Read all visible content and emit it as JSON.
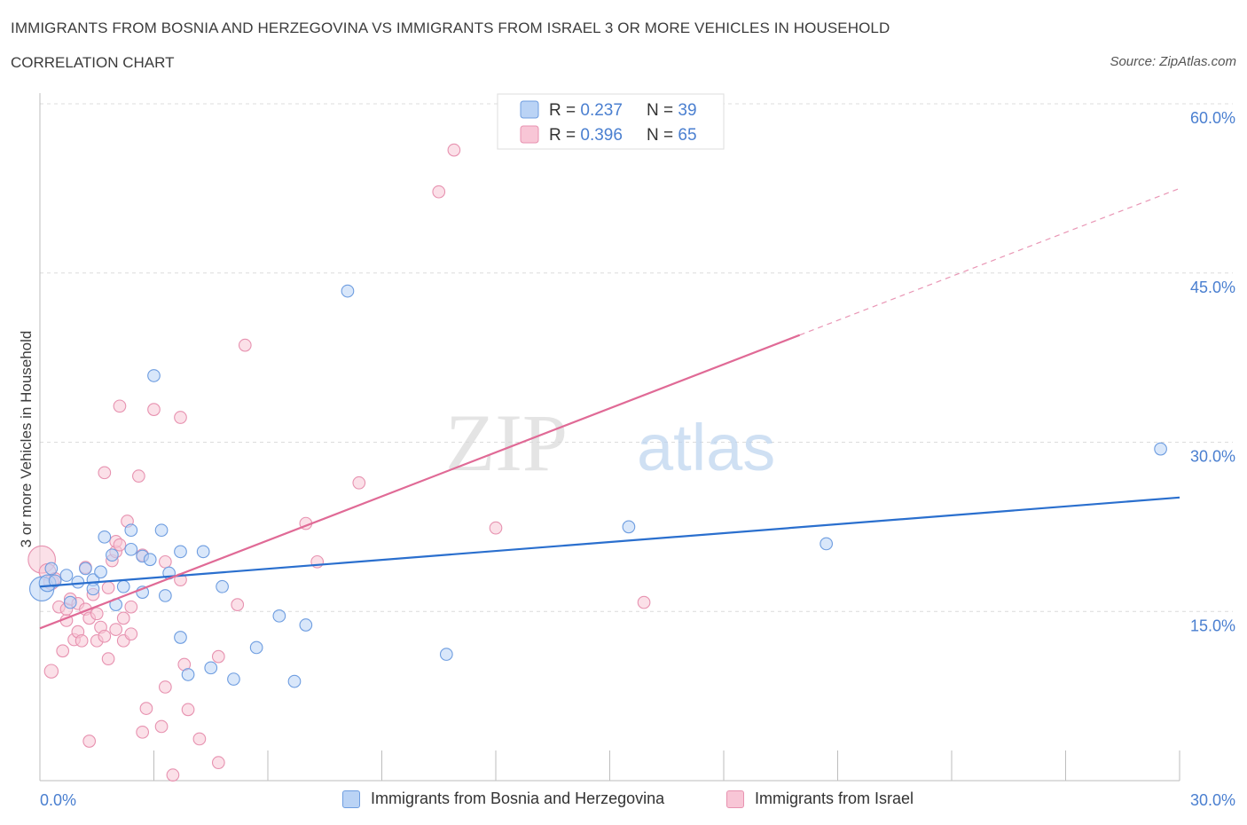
{
  "header": {
    "title": "IMMIGRANTS FROM BOSNIA AND HERZEGOVINA VS IMMIGRANTS FROM ISRAEL 3 OR MORE VEHICLES IN HOUSEHOLD",
    "subtitle": "CORRELATION CHART",
    "source": "Source: ZipAtlas.com"
  },
  "colors": {
    "blue_fill": "#bad3f5",
    "blue_stroke": "#6e9de0",
    "blue_line": "#2a6fce",
    "pink_fill": "#f8c6d6",
    "pink_stroke": "#e792b0",
    "pink_line": "#e06a96",
    "axis_text": "#4a7fd0"
  },
  "legend": {
    "r_label": "R = ",
    "n_label": "N = ",
    "entries": [
      {
        "r": "0.237",
        "n": "39"
      },
      {
        "r": "0.396",
        "n": "65"
      }
    ]
  },
  "watermark": {
    "zip": "ZIP",
    "atlas": "atlas"
  },
  "chart_data": {
    "type": "scatter",
    "ylabel": "3 or more Vehicles in Household",
    "xlabel": "",
    "xlim": [
      0,
      30
    ],
    "ylim": [
      0,
      60
    ],
    "x_tick_labels": [
      "0.0%",
      "30.0%"
    ],
    "y_tick_labels": [
      "15.0%",
      "30.0%",
      "45.0%",
      "60.0%"
    ],
    "y_ticks": [
      15,
      30,
      45,
      60
    ],
    "series": [
      {
        "name": "Immigrants from Bosnia and Herzegovina",
        "color": "blue",
        "r": 0.237,
        "n": 39,
        "trend": {
          "x0": 0,
          "y0": 17.2,
          "x1": 30,
          "y1": 25.1
        },
        "points": [
          [
            0.05,
            17.0,
            1.6
          ],
          [
            0.2,
            17.5,
            1.1
          ],
          [
            0.3,
            18.8,
            0.8
          ],
          [
            0.4,
            17.7,
            0.8
          ],
          [
            0.7,
            18.2,
            0.8
          ],
          [
            0.8,
            15.8,
            0.8
          ],
          [
            1.0,
            17.6,
            0.8
          ],
          [
            1.2,
            18.8,
            0.8
          ],
          [
            1.4,
            17.8,
            0.8
          ],
          [
            1.4,
            17.0,
            0.8
          ],
          [
            1.6,
            18.5,
            0.8
          ],
          [
            1.7,
            21.6,
            0.8
          ],
          [
            1.9,
            20.0,
            0.8
          ],
          [
            2.0,
            15.6,
            0.8
          ],
          [
            2.2,
            17.2,
            0.8
          ],
          [
            2.4,
            22.2,
            0.8
          ],
          [
            2.4,
            20.5,
            0.8
          ],
          [
            2.7,
            16.7,
            0.8
          ],
          [
            2.7,
            19.9,
            0.8
          ],
          [
            2.9,
            19.6,
            0.8
          ],
          [
            3.0,
            35.9,
            0.8
          ],
          [
            3.2,
            22.2,
            0.8
          ],
          [
            3.3,
            16.4,
            0.8
          ],
          [
            3.4,
            18.4,
            0.8
          ],
          [
            3.7,
            12.7,
            0.8
          ],
          [
            3.7,
            20.3,
            0.8
          ],
          [
            3.9,
            9.4,
            0.8
          ],
          [
            4.3,
            20.3,
            0.8
          ],
          [
            4.5,
            10.0,
            0.8
          ],
          [
            4.8,
            17.2,
            0.8
          ],
          [
            5.1,
            9.0,
            0.8
          ],
          [
            5.7,
            11.8,
            0.8
          ],
          [
            6.3,
            14.6,
            0.8
          ],
          [
            6.7,
            8.8,
            0.8
          ],
          [
            7.0,
            13.8,
            0.8
          ],
          [
            8.1,
            43.4,
            0.8
          ],
          [
            10.7,
            11.2,
            0.8
          ],
          [
            15.5,
            22.5,
            0.8
          ],
          [
            20.7,
            21.0,
            0.8
          ],
          [
            29.5,
            29.4,
            0.8
          ]
        ]
      },
      {
        "name": "Immigrants from Israel",
        "color": "pink",
        "r": 0.396,
        "n": 65,
        "trend": {
          "x0": 0,
          "y0": 13.5,
          "x1": 20.0,
          "y1": 39.5,
          "dash_x1": 30,
          "dash_y1": 52.5
        },
        "points": [
          [
            0.05,
            19.6,
            1.8
          ],
          [
            0.2,
            18.5,
            1.1
          ],
          [
            0.3,
            17.6,
            1.0
          ],
          [
            0.4,
            17.9,
            0.8
          ],
          [
            0.3,
            9.7,
            0.9
          ],
          [
            0.5,
            15.4,
            0.8
          ],
          [
            0.6,
            11.5,
            0.8
          ],
          [
            0.7,
            14.2,
            0.8
          ],
          [
            0.7,
            15.2,
            0.8
          ],
          [
            0.8,
            16.1,
            0.8
          ],
          [
            0.9,
            12.5,
            0.8
          ],
          [
            1.0,
            13.2,
            0.8
          ],
          [
            1.0,
            15.7,
            0.8
          ],
          [
            1.1,
            12.4,
            0.8
          ],
          [
            1.2,
            15.2,
            0.8
          ],
          [
            1.2,
            18.9,
            0.8
          ],
          [
            1.3,
            14.4,
            0.8
          ],
          [
            1.3,
            3.5,
            0.8
          ],
          [
            1.4,
            16.5,
            0.8
          ],
          [
            1.5,
            14.8,
            0.8
          ],
          [
            1.5,
            12.4,
            0.8
          ],
          [
            1.6,
            13.6,
            0.8
          ],
          [
            1.7,
            12.8,
            0.8
          ],
          [
            1.7,
            27.3,
            0.8
          ],
          [
            1.8,
            10.8,
            0.8
          ],
          [
            1.8,
            17.1,
            0.8
          ],
          [
            1.9,
            19.5,
            0.8
          ],
          [
            2.0,
            13.4,
            0.8
          ],
          [
            2.0,
            20.3,
            0.8
          ],
          [
            2.0,
            21.2,
            0.8
          ],
          [
            2.1,
            20.9,
            0.8
          ],
          [
            2.1,
            33.2,
            0.8
          ],
          [
            2.2,
            12.4,
            0.8
          ],
          [
            2.2,
            14.4,
            0.8
          ],
          [
            2.3,
            23.0,
            0.8
          ],
          [
            2.4,
            13.0,
            0.8
          ],
          [
            2.4,
            15.4,
            0.8
          ],
          [
            2.6,
            27.0,
            0.8
          ],
          [
            2.7,
            20.0,
            0.8
          ],
          [
            2.7,
            4.3,
            0.8
          ],
          [
            2.8,
            6.4,
            0.8
          ],
          [
            3.0,
            32.9,
            0.8
          ],
          [
            3.2,
            4.8,
            0.8
          ],
          [
            3.3,
            8.3,
            0.8
          ],
          [
            3.3,
            19.4,
            0.8
          ],
          [
            3.5,
            0.5,
            0.8
          ],
          [
            3.7,
            17.8,
            0.8
          ],
          [
            3.7,
            32.2,
            0.8
          ],
          [
            3.8,
            10.3,
            0.8
          ],
          [
            3.9,
            6.3,
            0.8
          ],
          [
            4.2,
            3.7,
            0.8
          ],
          [
            4.7,
            11.0,
            0.8
          ],
          [
            4.7,
            1.6,
            0.8
          ],
          [
            5.2,
            15.6,
            0.8
          ],
          [
            5.4,
            38.6,
            0.8
          ],
          [
            7.0,
            22.8,
            0.8
          ],
          [
            7.3,
            19.4,
            0.8
          ],
          [
            8.4,
            26.4,
            0.8
          ],
          [
            10.5,
            52.2,
            0.8
          ],
          [
            10.9,
            55.9,
            0.8
          ],
          [
            12.0,
            22.4,
            0.8
          ],
          [
            15.9,
            15.8,
            0.8
          ]
        ]
      }
    ]
  }
}
